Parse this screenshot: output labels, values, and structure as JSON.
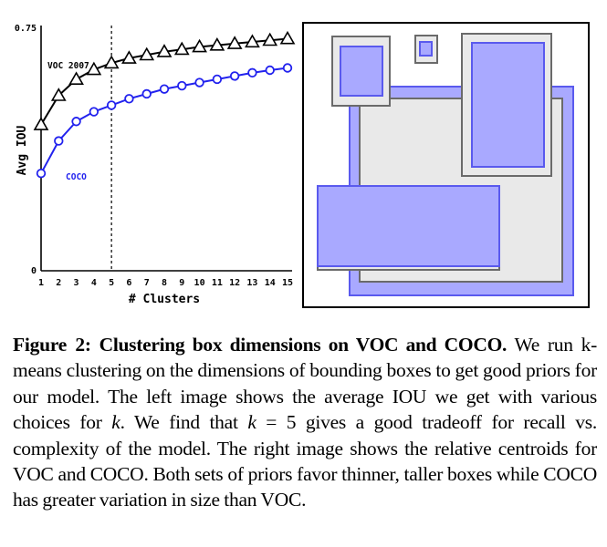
{
  "chart_data": [
    {
      "type": "line",
      "title": "",
      "xlabel": "# Clusters",
      "ylabel": "Avg IOU",
      "x": [
        1,
        2,
        3,
        4,
        5,
        6,
        7,
        8,
        9,
        10,
        11,
        12,
        13,
        14,
        15
      ],
      "xlim": [
        1,
        15
      ],
      "ylim": [
        0,
        0.75
      ],
      "ytick_labels": [
        "0",
        "0.75"
      ],
      "reference_line_x": 5,
      "grid": false,
      "series": [
        {
          "name": "VOC 2007",
          "marker": "triangle",
          "color": "#000000",
          "values": [
            0.45,
            0.54,
            0.59,
            0.62,
            0.64,
            0.655,
            0.665,
            0.675,
            0.682,
            0.69,
            0.695,
            0.7,
            0.705,
            0.71,
            0.715
          ]
        },
        {
          "name": "COCO",
          "marker": "circle",
          "color": "#2222ee",
          "values": [
            0.3,
            0.4,
            0.46,
            0.49,
            0.51,
            0.53,
            0.545,
            0.56,
            0.57,
            0.58,
            0.59,
            0.6,
            0.61,
            0.618,
            0.625
          ]
        }
      ]
    },
    {
      "type": "diagram",
      "description_for_series": "Relative cluster centroids",
      "series": [
        {
          "name": "VOC",
          "style": "gray outline boxes"
        },
        {
          "name": "COCO",
          "style": "blue filled boxes"
        }
      ]
    }
  ],
  "colors": {
    "voc_box_fill": "#e9e9e9",
    "voc_box_stroke": "#6a6a6a",
    "coco_box_fill": "#a9a9ff",
    "coco_box_stroke": "#6060f0",
    "coco_line": "#2222ee"
  },
  "caption": {
    "label": "Figure 2:",
    "title": "Clustering box dimensions on VOC and COCO.",
    "part1": " We run k-means clustering on the dimensions of bounding boxes to get good priors for our model. The left image shows the average IOU we get with various choices for ",
    "k1": "k",
    "part2": ". We find that ",
    "k2": "k",
    "eq": " = 5",
    "part3": " gives a good tradeoff for recall vs. complexity of the model. The right image shows the relative centroids for VOC and COCO. Both sets of priors favor thinner, taller boxes while COCO has greater variation in size than VOC."
  }
}
